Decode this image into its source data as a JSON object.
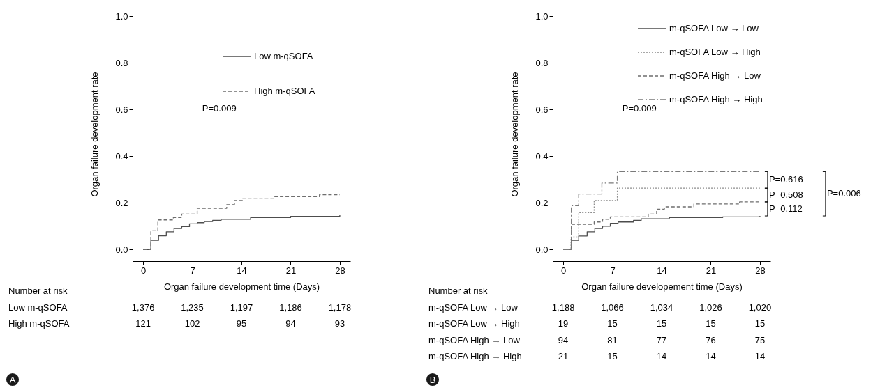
{
  "chart_data": [
    {
      "type": "step",
      "xlabel": "Organ failure development time (Days)",
      "ylabel": "Organ failure development rate",
      "xlim": [
        -1.5,
        29.5
      ],
      "ylim": [
        -0.05,
        1.04
      ],
      "xticks": [
        0,
        7,
        14,
        21,
        28
      ],
      "yticks": [
        {
          "value": 0,
          "label": "0.0"
        },
        {
          "value": 0.2,
          "label": "0.2"
        },
        {
          "value": 0.4,
          "label": "0.4"
        },
        {
          "value": 0.6,
          "label": "0.6"
        },
        {
          "value": 0.8,
          "label": "0.8"
        },
        {
          "value": 1,
          "label": "1.0"
        }
      ],
      "legend": "top right",
      "grid": false,
      "series": [
        {
          "name": "Low m-qSOFA",
          "color": "#4d4d4d",
          "line_style": "solid",
          "x": [
            0,
            1.1,
            2.2,
            3.3,
            4.4,
            5.5,
            6.6,
            7.7,
            8.7,
            9.9,
            11.1,
            15.3,
            21,
            28
          ],
          "values": [
            0,
            0.039,
            0.059,
            0.076,
            0.09,
            0.098,
            0.11,
            0.115,
            0.12,
            0.125,
            0.13,
            0.137,
            0.142,
            0.147
          ]
        },
        {
          "name": "High m-qSOFA",
          "color": "#6e6e6e",
          "line_style": "dashed",
          "x": [
            0,
            1.1,
            2.1,
            4.3,
            5.5,
            7.7,
            11.9,
            13,
            14.2,
            18.7,
            25.1,
            28
          ],
          "values": [
            0,
            0.08,
            0.127,
            0.137,
            0.152,
            0.177,
            0.192,
            0.21,
            0.22,
            0.227,
            0.235,
            0.235
          ]
        }
      ],
      "annotations": [
        "P=0.009",
        "Number at risk",
        "Low m-qSOFA",
        "1,376",
        "1,235",
        "1,197",
        "1,186",
        "1,178",
        "High m-qSOFA",
        "121",
        "102",
        "95",
        "94",
        "93",
        "A"
      ]
    },
    {
      "type": "step",
      "xlabel": "Organ failure developement time (Days)",
      "ylabel": "Organ failure development rate",
      "xlim": [
        -1.5,
        29.5
      ],
      "ylim": [
        -0.05,
        1.04
      ],
      "xticks": [
        0,
        7,
        14,
        21,
        28
      ],
      "yticks": [
        {
          "value": 0,
          "label": "0.0"
        },
        {
          "value": 0.2,
          "label": "0.2"
        },
        {
          "value": 0.4,
          "label": "0.4"
        },
        {
          "value": 0.6,
          "label": "0.6"
        },
        {
          "value": 0.8,
          "label": "0.8"
        },
        {
          "value": 1,
          "label": "1.0"
        }
      ],
      "legend": "top right",
      "grid": false,
      "series": [
        {
          "name": "m-qSOFA Low → Low",
          "color": "#4d4d4d",
          "line_style": "solid",
          "x": [
            0,
            1.15,
            2.2,
            3.4,
            4.5,
            5.6,
            6.7,
            7.8,
            10,
            11.1,
            15.1,
            22.7,
            28
          ],
          "values": [
            0,
            0.039,
            0.058,
            0.076,
            0.09,
            0.1,
            0.112,
            0.118,
            0.125,
            0.132,
            0.137,
            0.14,
            0.144
          ]
        },
        {
          "name": "m-qSOFA Low → High",
          "color": "#8c8c8c",
          "line_style": "dotted",
          "x": [
            0,
            1.1,
            2.2,
            4.4,
            7.7,
            28
          ],
          "values": [
            0,
            0.053,
            0.158,
            0.21,
            0.263,
            0.263
          ]
        },
        {
          "name": "m-qSOFA High → Low",
          "color": "#6e6e6e",
          "line_style": "dashed",
          "x": [
            0,
            1.15,
            4.4,
            5.6,
            6.7,
            12.1,
            13.3,
            14.4,
            18.6,
            25.1,
            28
          ],
          "values": [
            0,
            0.108,
            0.118,
            0.13,
            0.14,
            0.152,
            0.173,
            0.183,
            0.195,
            0.204,
            0.204
          ]
        },
        {
          "name": "m-qSOFA High → High",
          "color": "#7a7a7a",
          "line_style": "dashdot",
          "x": [
            0,
            1.15,
            2.2,
            5.5,
            7.7,
            28
          ],
          "values": [
            0,
            0.188,
            0.238,
            0.285,
            0.334,
            0.334
          ]
        }
      ],
      "annotations": [
        "P=0.009",
        "P=0.616",
        "P=0.508",
        "P=0.112",
        "P=0.006",
        "Number at risk",
        "m-qSOFA Low → Low",
        "1,188",
        "1,066",
        "1,034",
        "1,026",
        "1,020",
        "m-qSOFA Low → High",
        "19",
        "15",
        "15",
        "15",
        "15",
        "m-qSOFA High → Low",
        "94",
        "81",
        "77",
        "76",
        "75",
        "m-qSOFA High → High",
        "21",
        "15",
        "14",
        "14",
        "14",
        "B"
      ]
    }
  ]
}
